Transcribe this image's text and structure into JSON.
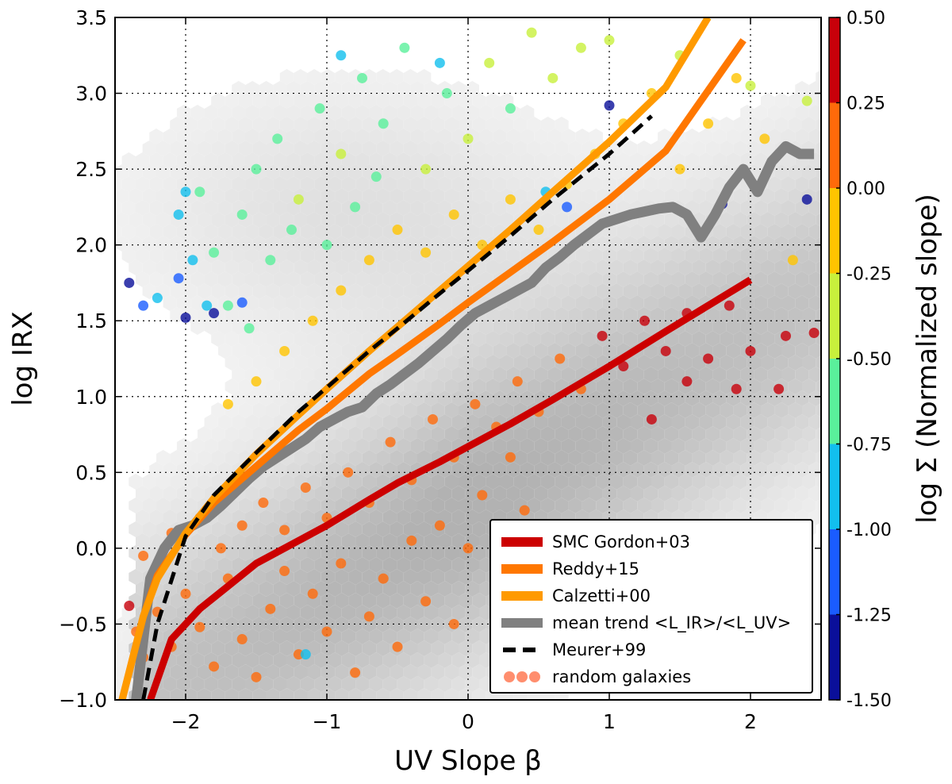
{
  "chart_data": {
    "type": "scatter",
    "xlabel": "UV Slope β",
    "ylabel": "log IRX",
    "xlim": [
      -2.5,
      2.5
    ],
    "ylim": [
      -1.0,
      3.5
    ],
    "grid": true,
    "x_ticks": [
      {
        "value": -2,
        "label": "−2"
      },
      {
        "value": -1,
        "label": "−1"
      },
      {
        "value": 0,
        "label": "0"
      },
      {
        "value": 1,
        "label": "1"
      },
      {
        "value": 2,
        "label": "2"
      }
    ],
    "y_ticks": [
      {
        "value": -1.0,
        "label": "−1.0"
      },
      {
        "value": -0.5,
        "label": "−0.5"
      },
      {
        "value": 0.0,
        "label": "0.0"
      },
      {
        "value": 0.5,
        "label": "0.5"
      },
      {
        "value": 1.0,
        "label": "1.0"
      },
      {
        "value": 1.5,
        "label": "1.5"
      },
      {
        "value": 2.0,
        "label": "2.0"
      },
      {
        "value": 2.5,
        "label": "2.5"
      },
      {
        "value": 3.0,
        "label": "3.0"
      },
      {
        "value": 3.5,
        "label": "3.5"
      }
    ],
    "colorbar": {
      "label": "log Σ (Normalized slope)",
      "range": [
        -1.5,
        0.5
      ],
      "ticks": [
        {
          "value": 0.5,
          "label": "0.50"
        },
        {
          "value": 0.25,
          "label": "0.25"
        },
        {
          "value": 0.0,
          "label": "0.00"
        },
        {
          "value": -0.25,
          "label": "-0.25"
        },
        {
          "value": -0.5,
          "label": "-0.50"
        },
        {
          "value": -0.75,
          "label": "-0.75"
        },
        {
          "value": -1.0,
          "label": "-1.00"
        },
        {
          "value": -1.25,
          "label": "-1.25"
        },
        {
          "value": -1.5,
          "label": "-1.50"
        }
      ],
      "bands": [
        {
          "from": 0.25,
          "to": 0.5,
          "color": "#c8000a"
        },
        {
          "from": 0.0,
          "to": 0.25,
          "color": "#ff6a0a"
        },
        {
          "from": -0.25,
          "to": 0.0,
          "color": "#ffc400"
        },
        {
          "from": -0.5,
          "to": -0.25,
          "color": "#c8f03c"
        },
        {
          "from": -0.75,
          "to": -0.5,
          "color": "#5af09b"
        },
        {
          "from": -1.0,
          "to": -0.75,
          "color": "#12bfee"
        },
        {
          "from": -1.25,
          "to": -1.0,
          "color": "#1a5cff"
        },
        {
          "from": -1.5,
          "to": -1.25,
          "color": "#0a0f9a"
        }
      ]
    },
    "legend": {
      "placement": "lower-right",
      "entries": [
        {
          "label": "SMC Gordon+03",
          "color": "#cc0000",
          "style": "line"
        },
        {
          "label": "Reddy+15",
          "color": "#ff7700",
          "style": "line"
        },
        {
          "label": "Calzetti+00",
          "color": "#ff9a00",
          "style": "line"
        },
        {
          "label": "mean trend <L_IR>/<L_UV>",
          "color": "#808080",
          "style": "line"
        },
        {
          "label": "Meurer+99",
          "color": "#000000",
          "style": "dashed"
        },
        {
          "label": "random galaxies",
          "color": "#ff7a55",
          "style": "points"
        }
      ]
    },
    "series": [
      {
        "name": "SMC Gordon+03",
        "color": "#cc0000",
        "x": [
          -2.25,
          -2.1,
          -1.9,
          -1.7,
          -1.5,
          -1.2,
          -1.0,
          -0.7,
          -0.5,
          -0.2,
          0.0,
          0.3,
          0.6,
          1.0,
          1.4,
          1.7,
          2.0
        ],
        "y": [
          -1.0,
          -0.6,
          -0.4,
          -0.25,
          -0.1,
          0.05,
          0.15,
          0.32,
          0.43,
          0.57,
          0.67,
          0.82,
          0.98,
          1.2,
          1.43,
          1.6,
          1.77
        ]
      },
      {
        "name": "Reddy+15",
        "color": "#ff7700",
        "x": [
          -2.45,
          -2.3,
          -2.2,
          -2.0,
          -1.8,
          -1.5,
          -1.2,
          -1.0,
          -0.7,
          -0.5,
          -0.2,
          0.0,
          0.3,
          0.6,
          1.0,
          1.4,
          1.95
        ],
        "y": [
          -1.0,
          -0.45,
          -0.18,
          0.09,
          0.3,
          0.54,
          0.78,
          0.92,
          1.15,
          1.28,
          1.48,
          1.62,
          1.82,
          2.02,
          2.3,
          2.62,
          3.35
        ]
      },
      {
        "name": "Calzetti+00",
        "color": "#ff9a00",
        "x": [
          -2.45,
          -2.3,
          -2.2,
          -2.0,
          -1.8,
          -1.5,
          -1.2,
          -1.0,
          -0.7,
          -0.5,
          -0.2,
          0.0,
          0.3,
          0.6,
          1.0,
          1.4,
          1.7
        ],
        "y": [
          -1.0,
          -0.45,
          -0.2,
          0.1,
          0.33,
          0.62,
          0.88,
          1.05,
          1.3,
          1.46,
          1.7,
          1.86,
          2.1,
          2.35,
          2.68,
          3.04,
          3.5
        ]
      },
      {
        "name": "mean trend <L_IR>/<L_UV>",
        "color": "#808080",
        "x": [
          -2.35,
          -2.25,
          -2.15,
          -2.05,
          -1.95,
          -1.85,
          -1.75,
          -1.65,
          -1.55,
          -1.45,
          -1.35,
          -1.25,
          -1.15,
          -1.05,
          -0.95,
          -0.85,
          -0.75,
          -0.65,
          -0.55,
          -0.45,
          -0.35,
          -0.25,
          -0.15,
          -0.05,
          0.05,
          0.15,
          0.25,
          0.35,
          0.45,
          0.55,
          0.65,
          0.75,
          0.85,
          0.95,
          1.05,
          1.15,
          1.25,
          1.35,
          1.45,
          1.55,
          1.65,
          1.75,
          1.85,
          1.95,
          2.05,
          2.15,
          2.25,
          2.35,
          2.45
        ],
        "y": [
          -1.0,
          -0.2,
          0.0,
          0.12,
          0.15,
          0.2,
          0.28,
          0.37,
          0.46,
          0.54,
          0.6,
          0.66,
          0.72,
          0.8,
          0.85,
          0.9,
          0.93,
          1.02,
          1.08,
          1.15,
          1.22,
          1.3,
          1.38,
          1.47,
          1.55,
          1.6,
          1.65,
          1.7,
          1.75,
          1.85,
          1.92,
          2.0,
          2.07,
          2.14,
          2.17,
          2.2,
          2.22,
          2.24,
          2.25,
          2.2,
          2.05,
          2.2,
          2.38,
          2.5,
          2.35,
          2.55,
          2.65,
          2.6,
          2.6
        ]
      },
      {
        "name": "Meurer+99",
        "color": "#000000",
        "x": [
          -2.3,
          -2.2,
          -2.0,
          -1.8,
          -1.5,
          -1.2,
          -1.0,
          -0.7,
          -0.5,
          -0.2,
          0.0,
          0.3,
          0.6,
          1.0,
          1.3
        ],
        "y": [
          -1.0,
          -0.5,
          0.08,
          0.35,
          0.63,
          0.9,
          1.06,
          1.3,
          1.45,
          1.68,
          1.83,
          2.06,
          2.3,
          2.6,
          2.85
        ]
      }
    ],
    "random_galaxies": [
      {
        "x": -2.4,
        "y": -0.38,
        "v": 0.3
      },
      {
        "x": -2.35,
        "y": -0.55,
        "v": 0.1
      },
      {
        "x": -2.3,
        "y": -0.72,
        "v": 0.2
      },
      {
        "x": -2.2,
        "y": -0.42,
        "v": 0.05
      },
      {
        "x": -2.1,
        "y": -0.65,
        "v": 0.15
      },
      {
        "x": -2.0,
        "y": -0.3,
        "v": 0.1
      },
      {
        "x": -1.9,
        "y": -0.52,
        "v": 0.2
      },
      {
        "x": -1.8,
        "y": -0.78,
        "v": 0.08
      },
      {
        "x": -1.7,
        "y": -0.2,
        "v": 0.12
      },
      {
        "x": -1.6,
        "y": -0.6,
        "v": 0.18
      },
      {
        "x": -1.5,
        "y": -0.85,
        "v": 0.1
      },
      {
        "x": -1.4,
        "y": -0.4,
        "v": 0.22
      },
      {
        "x": -1.3,
        "y": -0.15,
        "v": 0.05
      },
      {
        "x": -1.2,
        "y": -0.7,
        "v": 0.14
      },
      {
        "x": -1.1,
        "y": -0.3,
        "v": 0.1
      },
      {
        "x": -1.0,
        "y": -0.55,
        "v": 0.2
      },
      {
        "x": -0.9,
        "y": -0.1,
        "v": 0.15
      },
      {
        "x": -0.8,
        "y": -0.82,
        "v": 0.06
      },
      {
        "x": -0.7,
        "y": -0.45,
        "v": 0.12
      },
      {
        "x": -0.6,
        "y": -0.2,
        "v": 0.18
      },
      {
        "x": -0.5,
        "y": -0.65,
        "v": 0.1
      },
      {
        "x": -0.4,
        "y": 0.05,
        "v": 0.08
      },
      {
        "x": -0.3,
        "y": -0.35,
        "v": 0.2
      },
      {
        "x": -0.2,
        "y": 0.15,
        "v": 0.1
      },
      {
        "x": -0.1,
        "y": -0.5,
        "v": 0.14
      },
      {
        "x": 0.0,
        "y": 0.0,
        "v": 0.12
      },
      {
        "x": 0.1,
        "y": 0.35,
        "v": 0.2
      },
      {
        "x": 0.2,
        "y": 0.1,
        "v": 0.06
      },
      {
        "x": 0.3,
        "y": 0.6,
        "v": 0.1
      },
      {
        "x": 0.4,
        "y": 0.25,
        "v": 0.16
      },
      {
        "x": -2.3,
        "y": -0.05,
        "v": 0.2
      },
      {
        "x": -2.1,
        "y": 0.1,
        "v": 0.1
      },
      {
        "x": -1.9,
        "y": 0.2,
        "v": 0.14
      },
      {
        "x": -1.75,
        "y": 0.0,
        "v": 0.18
      },
      {
        "x": -1.6,
        "y": 0.15,
        "v": 0.1
      },
      {
        "x": -1.45,
        "y": 0.3,
        "v": 0.06
      },
      {
        "x": -1.3,
        "y": 0.12,
        "v": 0.2
      },
      {
        "x": -1.15,
        "y": 0.4,
        "v": 0.12
      },
      {
        "x": -1.0,
        "y": 0.2,
        "v": 0.1
      },
      {
        "x": -0.85,
        "y": 0.5,
        "v": 0.15
      },
      {
        "x": -0.7,
        "y": 0.3,
        "v": 0.2
      },
      {
        "x": -0.55,
        "y": 0.7,
        "v": 0.08
      },
      {
        "x": -0.4,
        "y": 0.45,
        "v": 0.12
      },
      {
        "x": -0.25,
        "y": 0.85,
        "v": 0.14
      },
      {
        "x": -0.1,
        "y": 0.6,
        "v": 0.1
      },
      {
        "x": 0.05,
        "y": 0.95,
        "v": 0.2
      },
      {
        "x": 0.2,
        "y": 0.8,
        "v": 0.1
      },
      {
        "x": 0.35,
        "y": 1.1,
        "v": 0.16
      },
      {
        "x": 0.5,
        "y": 0.9,
        "v": 0.12
      },
      {
        "x": 0.65,
        "y": 1.25,
        "v": 0.08
      },
      {
        "x": 0.8,
        "y": 1.05,
        "v": 0.18
      },
      {
        "x": 0.95,
        "y": 1.4,
        "v": 0.3
      },
      {
        "x": 1.1,
        "y": 1.2,
        "v": 0.35
      },
      {
        "x": 1.25,
        "y": 1.5,
        "v": 0.32
      },
      {
        "x": 1.4,
        "y": 1.3,
        "v": 0.4
      },
      {
        "x": 1.55,
        "y": 1.55,
        "v": 0.36
      },
      {
        "x": 1.7,
        "y": 1.25,
        "v": 0.3
      },
      {
        "x": 1.85,
        "y": 1.6,
        "v": 0.34
      },
      {
        "x": 2.0,
        "y": 1.3,
        "v": 0.42
      },
      {
        "x": 2.25,
        "y": 1.4,
        "v": 0.38
      },
      {
        "x": 2.45,
        "y": 1.42,
        "v": 0.3
      },
      {
        "x": 1.9,
        "y": 1.05,
        "v": 0.35
      },
      {
        "x": 2.2,
        "y": 1.05,
        "v": 0.32
      },
      {
        "x": 1.3,
        "y": 0.85,
        "v": 0.34
      },
      {
        "x": 1.55,
        "y": 1.1,
        "v": 0.3
      },
      {
        "x": -1.7,
        "y": 0.95,
        "v": -0.1
      },
      {
        "x": -1.5,
        "y": 1.1,
        "v": -0.2
      },
      {
        "x": -1.3,
        "y": 1.3,
        "v": -0.15
      },
      {
        "x": -1.1,
        "y": 1.5,
        "v": -0.12
      },
      {
        "x": -0.9,
        "y": 1.7,
        "v": -0.18
      },
      {
        "x": -0.7,
        "y": 1.9,
        "v": -0.1
      },
      {
        "x": -0.5,
        "y": 2.1,
        "v": -0.22
      },
      {
        "x": -0.3,
        "y": 1.95,
        "v": -0.14
      },
      {
        "x": -0.1,
        "y": 2.2,
        "v": -0.2
      },
      {
        "x": 0.1,
        "y": 2.0,
        "v": -0.16
      },
      {
        "x": 0.3,
        "y": 2.3,
        "v": -0.12
      },
      {
        "x": 0.5,
        "y": 2.1,
        "v": -0.2
      },
      {
        "x": 0.7,
        "y": 2.4,
        "v": -0.18
      },
      {
        "x": 0.9,
        "y": 2.6,
        "v": -0.1
      },
      {
        "x": 1.1,
        "y": 2.8,
        "v": -0.2
      },
      {
        "x": 1.3,
        "y": 3.0,
        "v": -0.14
      },
      {
        "x": 1.5,
        "y": 2.5,
        "v": -0.22
      },
      {
        "x": 1.7,
        "y": 2.8,
        "v": -0.12
      },
      {
        "x": 1.9,
        "y": 3.1,
        "v": -0.18
      },
      {
        "x": 2.1,
        "y": 2.7,
        "v": -0.1
      },
      {
        "x": 2.3,
        "y": 1.9,
        "v": -0.2
      },
      {
        "x": -1.6,
        "y": 2.2,
        "v": -0.6
      },
      {
        "x": -1.5,
        "y": 2.5,
        "v": -0.55
      },
      {
        "x": -1.35,
        "y": 2.7,
        "v": -0.62
      },
      {
        "x": -1.2,
        "y": 2.3,
        "v": -0.5
      },
      {
        "x": -1.05,
        "y": 2.9,
        "v": -0.58
      },
      {
        "x": -0.9,
        "y": 2.6,
        "v": -0.45
      },
      {
        "x": -0.75,
        "y": 3.1,
        "v": -0.6
      },
      {
        "x": -0.6,
        "y": 2.8,
        "v": -0.52
      },
      {
        "x": -0.45,
        "y": 3.3,
        "v": -0.56
      },
      {
        "x": -0.3,
        "y": 2.5,
        "v": -0.48
      },
      {
        "x": -0.15,
        "y": 3.0,
        "v": -0.6
      },
      {
        "x": 0.0,
        "y": 2.7,
        "v": -0.5
      },
      {
        "x": 0.15,
        "y": 3.2,
        "v": -0.45
      },
      {
        "x": 0.3,
        "y": 2.9,
        "v": -0.55
      },
      {
        "x": 0.45,
        "y": 3.4,
        "v": -0.5
      },
      {
        "x": 0.6,
        "y": 3.1,
        "v": -0.4
      },
      {
        "x": 0.8,
        "y": 3.3,
        "v": -0.45
      },
      {
        "x": 1.0,
        "y": 3.35,
        "v": -0.5
      },
      {
        "x": 1.5,
        "y": 3.25,
        "v": -0.42
      },
      {
        "x": 2.0,
        "y": 3.05,
        "v": -0.4
      },
      {
        "x": 2.4,
        "y": 2.95,
        "v": -0.45
      },
      {
        "x": -1.8,
        "y": 1.95,
        "v": -0.7
      },
      {
        "x": -1.9,
        "y": 2.35,
        "v": -0.65
      },
      {
        "x": -1.7,
        "y": 1.6,
        "v": -0.68
      },
      {
        "x": -1.55,
        "y": 1.45,
        "v": -0.6
      },
      {
        "x": -1.4,
        "y": 1.9,
        "v": -0.72
      },
      {
        "x": -1.25,
        "y": 2.1,
        "v": -0.66
      },
      {
        "x": -1.0,
        "y": 2.0,
        "v": -0.62
      },
      {
        "x": -0.8,
        "y": 2.25,
        "v": -0.7
      },
      {
        "x": -0.65,
        "y": 2.45,
        "v": -0.6
      },
      {
        "x": -2.2,
        "y": 1.65,
        "v": -0.85
      },
      {
        "x": -2.05,
        "y": 2.2,
        "v": -0.9
      },
      {
        "x": -1.95,
        "y": 1.9,
        "v": -0.95
      },
      {
        "x": -1.85,
        "y": 1.6,
        "v": -0.82
      },
      {
        "x": -2.0,
        "y": 2.35,
        "v": -0.88
      },
      {
        "x": -1.15,
        "y": -0.7,
        "v": -0.9
      },
      {
        "x": -0.9,
        "y": 3.25,
        "v": -0.85
      },
      {
        "x": -0.2,
        "y": 3.2,
        "v": -0.88
      },
      {
        "x": 0.55,
        "y": 2.35,
        "v": -0.86
      },
      {
        "x": -2.4,
        "y": 1.75,
        "v": -1.35
      },
      {
        "x": -2.3,
        "y": 1.6,
        "v": -1.1
      },
      {
        "x": -2.05,
        "y": 1.78,
        "v": -1.2
      },
      {
        "x": -2.0,
        "y": 1.52,
        "v": -1.3
      },
      {
        "x": -1.8,
        "y": 1.55,
        "v": -1.4
      },
      {
        "x": -1.6,
        "y": 1.62,
        "v": -1.2
      },
      {
        "x": 1.0,
        "y": 2.92,
        "v": -1.35
      },
      {
        "x": 1.8,
        "y": 2.27,
        "v": -1.3
      },
      {
        "x": 2.4,
        "y": 2.3,
        "v": -1.4
      },
      {
        "x": 0.7,
        "y": 2.25,
        "v": -1.25
      }
    ]
  }
}
